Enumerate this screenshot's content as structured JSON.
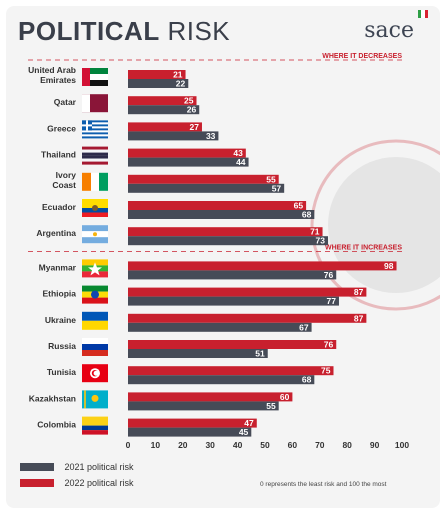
{
  "header": {
    "title_bold": "POLITICAL",
    "title_light": "RISK",
    "logo_text": "sace",
    "logo_flag_colors": [
      "#2e9e45",
      "#ffffff",
      "#d82231"
    ]
  },
  "legend": {
    "items": [
      {
        "label": "2021 political risk",
        "color": "#464b57"
      },
      {
        "label": "2022 political risk",
        "color": "#c8202e"
      }
    ],
    "note": "0 represents the least risk and 100 the most"
  },
  "chart_data": {
    "type": "bar",
    "orientation": "horizontal",
    "sections": [
      {
        "label": "WHERE IT DECREASES",
        "start_index": 0
      },
      {
        "label": "WHERE IT INCREASES",
        "start_index": 7
      }
    ],
    "categories": [
      "United Arab Emirates",
      "Qatar",
      "Greece",
      "Thailand",
      "Ivory Coast",
      "Ecuador",
      "Argentina",
      "Myanmar",
      "Ethiopia",
      "Ukraine",
      "Russia",
      "Tunisia",
      "Kazakhstan",
      "Colombia"
    ],
    "category_lines": [
      [
        "United Arab",
        "Emirates"
      ],
      [
        "Qatar"
      ],
      [
        "Greece"
      ],
      [
        "Thailand"
      ],
      [
        "Ivory",
        "Coast"
      ],
      [
        "Ecuador"
      ],
      [
        "Argentina"
      ],
      [
        "Myanmar"
      ],
      [
        "Ethiopia"
      ],
      [
        "Ukraine"
      ],
      [
        "Russia"
      ],
      [
        "Tunisia"
      ],
      [
        "Kazakhstan"
      ],
      [
        "Colombia"
      ]
    ],
    "series": [
      {
        "name": "2022 political risk",
        "color": "#c8202e",
        "values": [
          21,
          25,
          27,
          43,
          55,
          65,
          71,
          98,
          87,
          87,
          76,
          75,
          60,
          47
        ]
      },
      {
        "name": "2021 political risk",
        "color": "#464b57",
        "values": [
          22,
          26,
          33,
          44,
          57,
          68,
          73,
          76,
          77,
          67,
          51,
          68,
          55,
          45
        ]
      }
    ],
    "xlim": [
      0,
      100
    ],
    "xticks": [
      0,
      10,
      20,
      30,
      40,
      50,
      60,
      70,
      80,
      90,
      100
    ],
    "grid": false,
    "legend_position": "bottom-left"
  }
}
